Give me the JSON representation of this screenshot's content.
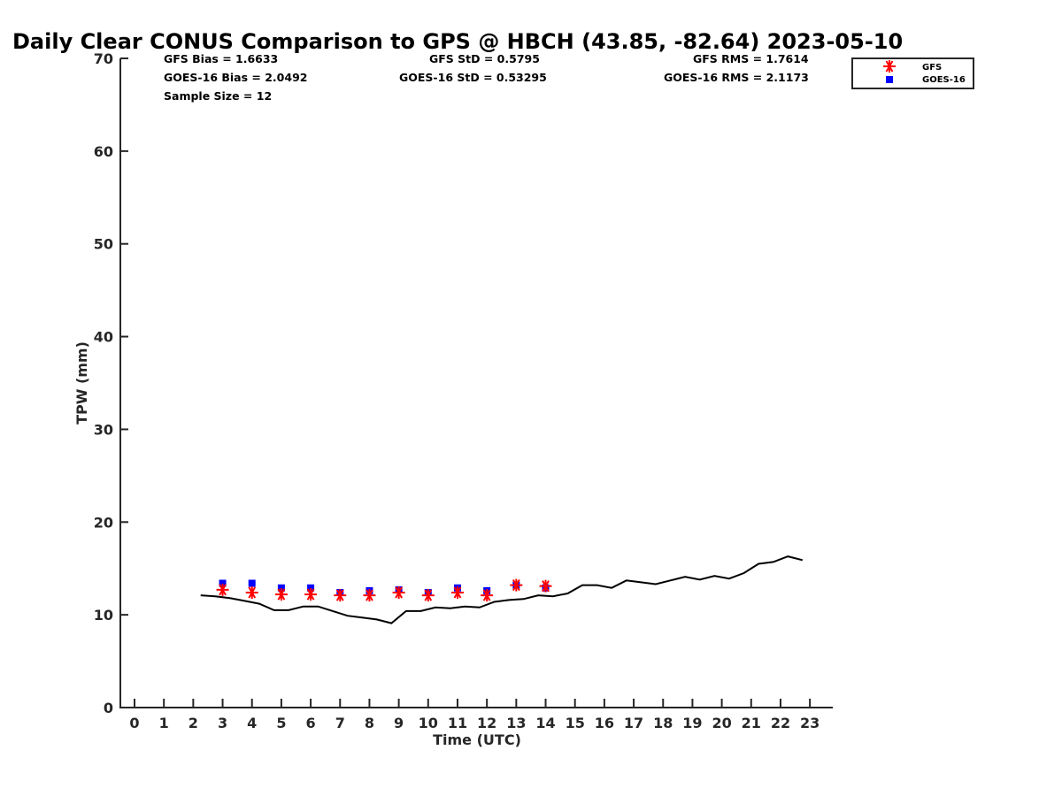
{
  "chart_data": {
    "type": "scatter",
    "title": "Daily Clear CONUS Comparison to GPS @ HBCH (43.85, -82.64) 2023-05-10",
    "xlabel": "Time (UTC)",
    "ylabel": "TPW (mm)",
    "xlim": [
      -0.5,
      23.7
    ],
    "ylim": [
      0,
      70
    ],
    "xticks": [
      "0",
      "1",
      "2",
      "3",
      "4",
      "5",
      "6",
      "7",
      "8",
      "9",
      "10",
      "11",
      "12",
      "13",
      "14",
      "15",
      "16",
      "17",
      "18",
      "19",
      "20",
      "21",
      "22",
      "23"
    ],
    "yticks": [
      "0",
      "10",
      "20",
      "30",
      "40",
      "50",
      "60",
      "70"
    ],
    "grid": false,
    "legend_position": "top-right",
    "stats": {
      "gfs_bias": "GFS Bias = 1.6633",
      "goes_bias": "GOES-16 Bias = 2.0492",
      "sample_size": "Sample Size = 12",
      "gfs_std": "GFS StD = 0.5795",
      "goes_std": "GOES-16 StD = 0.53295",
      "gfs_rms": "GFS RMS = 1.7614",
      "goes_rms": "GOES-16 RMS = 2.1173"
    },
    "series": [
      {
        "name": "GFS",
        "marker": "asterisk",
        "color": "#ff0000",
        "x": [
          3,
          4,
          5,
          6,
          7,
          8,
          9,
          10,
          11,
          12,
          13,
          14
        ],
        "y": [
          12.7,
          12.4,
          12.2,
          12.2,
          12.1,
          12.1,
          12.4,
          12.1,
          12.4,
          12.1,
          13.2,
          13.1
        ]
      },
      {
        "name": "GOES-16",
        "marker": "square",
        "color": "#0000ff",
        "x": [
          3,
          4,
          5,
          6,
          7,
          8,
          9,
          10,
          11,
          12,
          13,
          14
        ],
        "y": [
          13.4,
          13.4,
          12.9,
          12.9,
          12.4,
          12.6,
          12.7,
          12.4,
          12.9,
          12.6,
          13.2,
          12.9
        ]
      },
      {
        "marker": "line",
        "color": "#000000",
        "x": [
          2.25,
          2.75,
          3.25,
          3.75,
          4.25,
          4.75,
          5.25,
          5.75,
          6.25,
          6.75,
          7.25,
          7.75,
          8.25,
          8.75,
          9.25,
          9.75,
          10.25,
          10.75,
          11.25,
          11.75,
          12.25,
          12.75,
          13.25,
          13.75,
          14.25,
          14.75,
          15.25,
          15.75,
          16.25,
          16.75,
          17.25,
          17.75,
          18.25,
          18.75,
          19.25,
          19.75,
          20.25,
          20.75,
          21.25,
          21.75,
          22.25,
          22.75
        ],
        "y": [
          12.1,
          12.0,
          11.8,
          11.5,
          11.2,
          10.5,
          10.5,
          10.9,
          10.9,
          10.4,
          9.9,
          9.7,
          9.5,
          9.1,
          10.4,
          10.4,
          10.8,
          10.7,
          10.9,
          10.8,
          11.4,
          11.6,
          11.7,
          12.1,
          12.0,
          12.3,
          13.2,
          13.2,
          12.9,
          13.7,
          13.5,
          13.3,
          13.7,
          14.1,
          13.8,
          14.2,
          13.9,
          14.5,
          15.5,
          15.7,
          16.3,
          15.9
        ]
      }
    ]
  }
}
